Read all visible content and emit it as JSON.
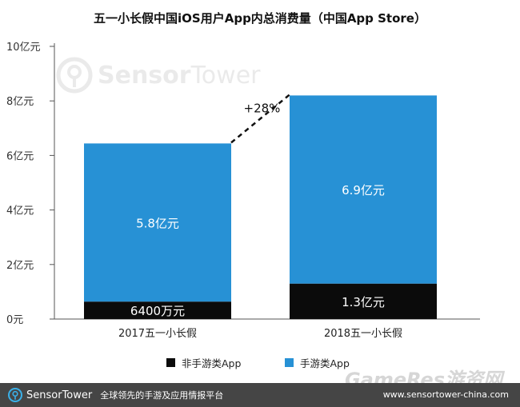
{
  "title": "五一小长假中国iOS用户App内总消费量（中国App Store）",
  "watermark": {
    "brand_a": "Sensor",
    "brand_b": "Tower"
  },
  "colors": {
    "game": "#2791d5",
    "non_game": "#0b0b0b",
    "axis": "#555555"
  },
  "chart_data": {
    "type": "bar",
    "stacked": true,
    "title": "五一小长假中国iOS用户App内总消费量（中国App Store）",
    "categories": [
      "2017五一小长假",
      "2018五一小长假"
    ],
    "series": [
      {
        "name": "非手游类App",
        "values": [
          0.64,
          1.3
        ],
        "labels": [
          "6400万元",
          "1.3亿元"
        ],
        "color": "#0b0b0b"
      },
      {
        "name": "手游类App",
        "values": [
          5.8,
          6.9
        ],
        "labels": [
          "5.8亿元",
          "6.9亿元"
        ],
        "color": "#2791d5"
      }
    ],
    "yticks": [
      0,
      2,
      4,
      6,
      8,
      10
    ],
    "ytick_labels": [
      "0元",
      "2亿元",
      "4亿元",
      "6亿元",
      "8亿元",
      "10亿元"
    ],
    "ylim": [
      0,
      10
    ],
    "unit": "亿元",
    "annotation": "+28%",
    "legend": [
      "非手游类App",
      "手游类App"
    ],
    "legend_position": "bottom"
  },
  "footer": {
    "brand_a": "Sensor",
    "brand_b": "Tower",
    "slogan": "全球领先的手游及应用情报平台",
    "url": "www.sensortower-china.com"
  },
  "corner_watermark": "GameRes游资网"
}
